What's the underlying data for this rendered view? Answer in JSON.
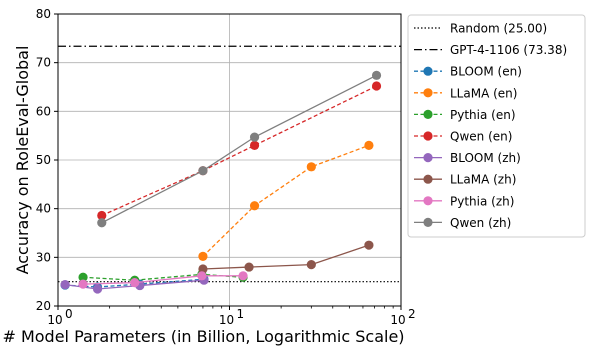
{
  "chart_data": {
    "type": "line",
    "title": "",
    "xlabel": "# Model Parameters (in Billion, Logarithmic Scale)",
    "ylabel": "Accuracy on RoleEval-Global",
    "xscale": "log",
    "xlim": [
      1,
      100
    ],
    "ylim": [
      20,
      80
    ],
    "xticks": [
      1,
      10,
      100
    ],
    "xtick_labels": [
      "10",
      "10",
      "10"
    ],
    "xtick_exponents": [
      "0",
      "1",
      "2"
    ],
    "yticks": [
      20,
      30,
      40,
      50,
      60,
      70,
      80
    ],
    "ytick_labels": [
      "20",
      "30",
      "40",
      "50",
      "60",
      "70",
      "80"
    ],
    "grid": true,
    "legend_position": "outside-right",
    "reference_lines": [
      {
        "name": "Random (25.00)",
        "value": 25.0,
        "style": "dotted",
        "color": "#000000"
      },
      {
        "name": "GPT-4-1106 (73.38)",
        "value": 73.38,
        "style": "dashdot",
        "color": "#000000"
      }
    ],
    "series": [
      {
        "name": "BLOOM (en)",
        "color": "#1f77b4",
        "dashed": true,
        "x": [
          1.1,
          1.7,
          3.0,
          7.1
        ],
        "y": [
          24.3,
          23.9,
          24.5,
          25.5
        ]
      },
      {
        "name": "LLaMA (en)",
        "color": "#ff7f0e",
        "dashed": true,
        "x": [
          7,
          14,
          30,
          65
        ],
        "y": [
          30.2,
          40.6,
          48.6,
          53.0
        ]
      },
      {
        "name": "Pythia (en)",
        "color": "#2ca02c",
        "dashed": true,
        "x": [
          1.4,
          2.8,
          6.9,
          12
        ],
        "y": [
          25.9,
          25.3,
          26.5,
          25.9
        ]
      },
      {
        "name": "Qwen (en)",
        "color": "#d62728",
        "dashed": true,
        "x": [
          1.8,
          7,
          14,
          72
        ],
        "y": [
          38.6,
          47.8,
          53.0,
          65.2
        ]
      },
      {
        "name": "BLOOM (zh)",
        "color": "#9467bd",
        "dashed": false,
        "x": [
          1.1,
          1.7,
          3.0,
          7.1
        ],
        "y": [
          24.4,
          23.5,
          24.2,
          25.3
        ]
      },
      {
        "name": "LLaMA (zh)",
        "color": "#8c564b",
        "dashed": false,
        "x": [
          7,
          13,
          30,
          65
        ],
        "y": [
          27.6,
          28.0,
          28.5,
          32.5
        ]
      },
      {
        "name": "Pythia (zh)",
        "color": "#e377c2",
        "dashed": false,
        "x": [
          1.4,
          2.8,
          6.9,
          12
        ],
        "y": [
          24.5,
          24.8,
          26.2,
          26.2
        ]
      },
      {
        "name": "Qwen (zh)",
        "color": "#7f7f7f",
        "dashed": false,
        "x": [
          1.8,
          7,
          14,
          72
        ],
        "y": [
          37.1,
          47.8,
          54.7,
          67.4
        ]
      }
    ]
  }
}
